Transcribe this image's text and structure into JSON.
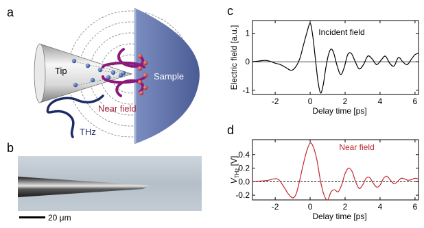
{
  "panels": {
    "a": {
      "letter": "a",
      "labels": {
        "tip": "Tip",
        "sample": "Sample",
        "near_field": "Near field",
        "thz": "THz"
      },
      "colors": {
        "sample": "#5b6fa6",
        "tip_light": "#f2f2f2",
        "tip_dark": "#8a8a8a",
        "field": "#8b1a7a",
        "thz": "#1e2a66",
        "near_field_text": "#a3213a"
      }
    },
    "b": {
      "letter": "b",
      "scale_bar_label": "20 μm",
      "colors": {
        "background": "#b9c3cd",
        "tip": "#2a2a2a"
      }
    }
  },
  "chart_data": [
    {
      "panel": "c",
      "type": "line",
      "legend_text": "Incident field",
      "xlabel": "Delay time [ps]",
      "ylabel": "Electric field [a.u.]",
      "xlim": [
        -3.3,
        6.2
      ],
      "ylim": [
        -1.15,
        1.45
      ],
      "xticks": [
        -2,
        0,
        2,
        4,
        6
      ],
      "yticks": [
        -1,
        0,
        1
      ],
      "zero_line": "solid",
      "line_color": "#000000",
      "x": [
        -3.3,
        -3.0,
        -2.6,
        -2.3,
        -2.0,
        -1.7,
        -1.4,
        -1.1,
        -0.85,
        -0.6,
        -0.4,
        -0.2,
        0.0,
        0.15,
        0.3,
        0.45,
        0.6,
        0.75,
        0.9,
        1.05,
        1.2,
        1.35,
        1.55,
        1.75,
        1.95,
        2.15,
        2.35,
        2.55,
        2.8,
        3.05,
        3.3,
        3.55,
        3.8,
        4.05,
        4.3,
        4.55,
        4.8,
        5.05,
        5.3,
        5.55,
        5.8,
        6.0,
        6.2
      ],
      "y": [
        0.0,
        0.02,
        0.05,
        0.02,
        -0.05,
        -0.1,
        -0.2,
        -0.3,
        -0.2,
        0.1,
        0.55,
        1.0,
        1.35,
        0.9,
        0.1,
        -0.7,
        -1.1,
        -0.8,
        -0.2,
        0.25,
        0.45,
        0.3,
        -0.15,
        -0.45,
        -0.2,
        0.25,
        0.3,
        0.05,
        -0.25,
        -0.1,
        0.2,
        0.1,
        -0.1,
        0.05,
        0.2,
        -0.05,
        -0.15,
        0.15,
        0.0,
        -0.1,
        0.1,
        0.25,
        0.3
      ]
    },
    {
      "panel": "d",
      "type": "line",
      "legend_text": "Near field",
      "xlabel": "Delay time [ps]",
      "ylabel": "V",
      "ylabel_sub": "THz",
      "ylabel_unit": "[V]",
      "xlim": [
        -3.3,
        6.2
      ],
      "ylim": [
        -0.27,
        0.62
      ],
      "xticks": [
        -2,
        0,
        2,
        4,
        6
      ],
      "yticks": [
        -0.2,
        0.0,
        0.2,
        0.4
      ],
      "ytick_labels": [
        "-0.2",
        "0.0",
        "0.2",
        "0.4"
      ],
      "zero_line": "dashed",
      "line_color": "#c0272d",
      "x": [
        -3.3,
        -2.8,
        -2.4,
        -2.1,
        -1.8,
        -1.5,
        -1.25,
        -1.0,
        -0.8,
        -0.6,
        -0.4,
        -0.2,
        0.0,
        0.2,
        0.4,
        0.6,
        0.8,
        1.0,
        1.2,
        1.4,
        1.6,
        1.8,
        2.0,
        2.2,
        2.4,
        2.6,
        2.8,
        3.0,
        3.2,
        3.4,
        3.6,
        3.8,
        4.0,
        4.2,
        4.4,
        4.6,
        4.8,
        5.0,
        5.2,
        5.4,
        5.6,
        5.8,
        6.0,
        6.2
      ],
      "y": [
        0.0,
        0.01,
        0.02,
        0.04,
        0.03,
        -0.08,
        -0.18,
        -0.24,
        -0.18,
        0.02,
        0.25,
        0.45,
        0.57,
        0.5,
        0.3,
        0.0,
        -0.2,
        -0.27,
        -0.15,
        -0.12,
        -0.15,
        -0.05,
        0.12,
        0.2,
        0.15,
        0.0,
        -0.1,
        -0.05,
        0.05,
        0.06,
        -0.02,
        -0.08,
        -0.05,
        0.05,
        0.08,
        0.02,
        -0.03,
        0.0,
        0.05,
        0.04,
        0.02,
        0.03,
        0.05,
        0.04
      ]
    }
  ]
}
